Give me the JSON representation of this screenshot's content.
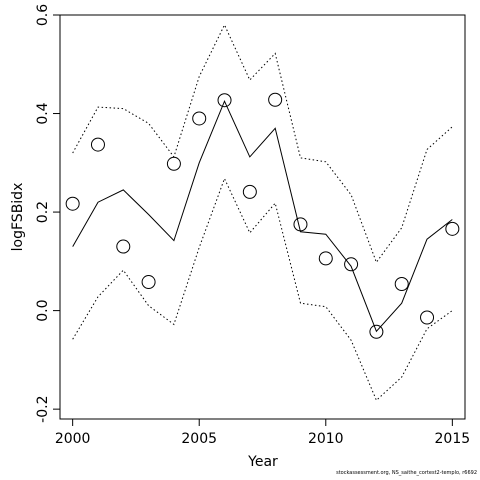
{
  "chart_data": {
    "type": "line",
    "xlabel": "Year",
    "ylabel": "logFSBidx",
    "xlim": [
      1999.5,
      2015.5
    ],
    "ylim": [
      -0.22,
      0.6
    ],
    "x_ticks": [
      "2000",
      "2005",
      "2010",
      "2015"
    ],
    "y_ticks": [
      "-0.2",
      "0.0",
      "0.2",
      "0.4",
      "0.6"
    ],
    "grid": false,
    "x": [
      2000,
      2001,
      2002,
      2003,
      2004,
      2005,
      2006,
      2007,
      2008,
      2009,
      2010,
      2011,
      2012,
      2013,
      2014,
      2015
    ],
    "series": [
      {
        "role": "estimate",
        "style": "solid",
        "values": [
          0.13,
          0.22,
          0.245,
          0.195,
          0.142,
          0.3,
          0.425,
          0.312,
          0.37,
          0.16,
          0.155,
          0.09,
          -0.042,
          0.015,
          0.145,
          0.185
        ]
      },
      {
        "role": "upper",
        "style": "dotted",
        "values": [
          0.32,
          0.413,
          0.41,
          0.38,
          0.312,
          0.475,
          0.58,
          0.468,
          0.522,
          0.31,
          0.302,
          0.235,
          0.098,
          0.168,
          0.327,
          0.373
        ]
      },
      {
        "role": "lower",
        "style": "dotted",
        "values": [
          -0.058,
          0.028,
          0.082,
          0.01,
          -0.028,
          0.128,
          0.268,
          0.158,
          0.218,
          0.015,
          0.008,
          -0.06,
          -0.182,
          -0.135,
          -0.037,
          0.0
        ]
      },
      {
        "role": "observed",
        "style": "circle",
        "values": [
          0.217,
          0.337,
          0.13,
          0.058,
          0.298,
          0.39,
          0.427,
          0.241,
          0.428,
          0.175,
          0.106,
          0.094,
          -0.043,
          0.054,
          -0.014,
          0.166
        ]
      }
    ],
    "colors": {
      "line": "#000000",
      "frame": "#000000",
      "background": "#ffffff"
    }
  },
  "footer": {
    "credit": "stockassessment.org, NS_saithe_cortest2-templo, r6692"
  }
}
